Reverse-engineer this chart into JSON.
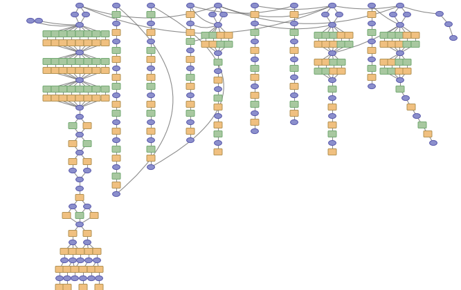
{
  "background_color": "#ffffff",
  "cc": "#8b8fcc",
  "ce": "#5555aa",
  "ro": "#f0c080",
  "roe": "#b09050",
  "rg": "#a8c8a0",
  "rge": "#70a870",
  "ec": "#666666",
  "ea": 0.75,
  "ew": 0.8,
  "figsize": [
    6.66,
    4.2
  ],
  "dpi": 100
}
